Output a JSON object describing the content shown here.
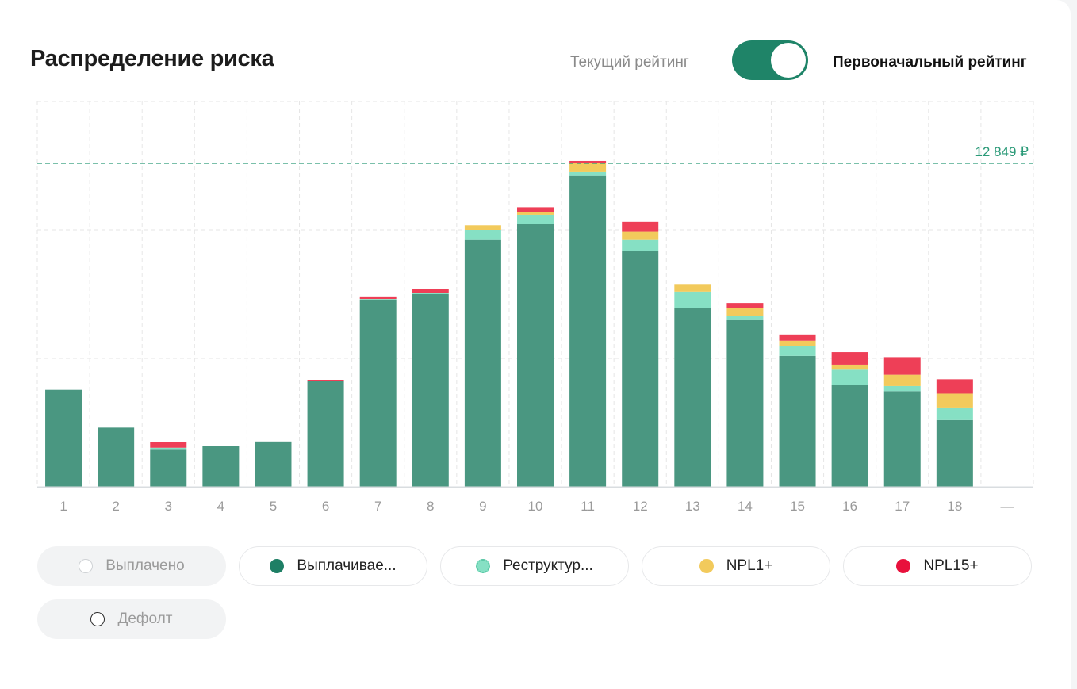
{
  "header": {
    "title": "Распределение риска",
    "toggle_left_label": "Текущий рейтинг",
    "toggle_right_label": "Первоначальный рейтинг"
  },
  "colors": {
    "paying": "#4a9781",
    "restructured": "#86e0c4",
    "npl1": "#f2ca5c",
    "npl15": "#ee3f57",
    "reference": "#2b9a78",
    "toggle": "#1f8468"
  },
  "legend": [
    {
      "label": "Выплачено",
      "color": "#ffffff",
      "border": "#cfd2d5",
      "active": false
    },
    {
      "label": "Выплачивае...",
      "color": "#1e7f65",
      "border": "#1e7f65",
      "active": true
    },
    {
      "label": "Реструктур...",
      "color": "#86e0c4",
      "border": "#5cc7a6",
      "active": true
    },
    {
      "label": "NPL1+",
      "color": "#f2ca5c",
      "border": "#f2ca5c",
      "active": true
    },
    {
      "label": "NPL15+",
      "color": "#e8113c",
      "border": "#e8113c",
      "active": true
    },
    {
      "label": "Дефолт",
      "color": "#ffffff",
      "border": "#2a2a2a",
      "active": false
    }
  ],
  "chart_data": {
    "type": "bar",
    "stacked": true,
    "title": "Распределение риска",
    "categories": [
      "1",
      "2",
      "3",
      "4",
      "5",
      "6",
      "7",
      "8",
      "9",
      "10",
      "11",
      "12",
      "13",
      "14",
      "15",
      "16",
      "17",
      "18",
      "—"
    ],
    "ylim": [
      0,
      15300
    ],
    "grid": true,
    "reference_line": {
      "value": 12849,
      "label": "12 849 ₽"
    },
    "series": [
      {
        "name": "Выплачиваемые",
        "color_key": "paying",
        "values": [
          3850,
          2350,
          1500,
          1620,
          1800,
          4200,
          7400,
          7650,
          9800,
          10450,
          12350,
          9350,
          7100,
          6650,
          5200,
          4050,
          3800,
          2650,
          0
        ]
      },
      {
        "name": "Реструктурированные",
        "color_key": "restructured",
        "values": [
          0,
          0,
          50,
          0,
          0,
          0,
          60,
          50,
          400,
          350,
          150,
          450,
          650,
          150,
          400,
          600,
          200,
          500,
          0
        ]
      },
      {
        "name": "NPL1+",
        "color_key": "npl1",
        "values": [
          0,
          0,
          0,
          0,
          0,
          0,
          0,
          0,
          180,
          100,
          350,
          350,
          300,
          300,
          200,
          200,
          450,
          550,
          0
        ]
      },
      {
        "name": "NPL15+",
        "color_key": "npl15",
        "values": [
          0,
          0,
          230,
          0,
          0,
          50,
          100,
          150,
          0,
          200,
          90,
          370,
          0,
          200,
          250,
          500,
          700,
          570,
          0
        ]
      }
    ]
  }
}
